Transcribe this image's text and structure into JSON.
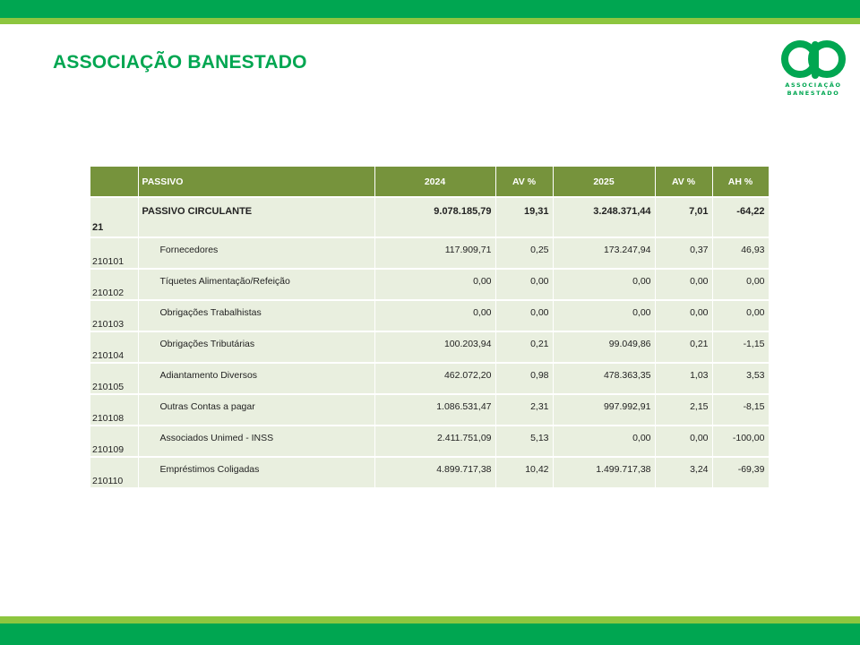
{
  "header": {
    "title": "ASSOCIAÇÃO BANESTADO"
  },
  "logo": {
    "line1": "ASSOCIAÇÃO",
    "line2": "BANESTADO",
    "color": "#00a651",
    "icon": "ab-logo-icon"
  },
  "colors": {
    "brand_green": "#00a651",
    "light_green": "#8dc63f",
    "table_header": "#76933c",
    "table_cell": "#e9efdf"
  },
  "table": {
    "headers": [
      "",
      "PASSIVO",
      "2024",
      "AV %",
      "2025",
      "AV %",
      "AH %"
    ],
    "group": {
      "code": "21",
      "name": "PASSIVO CIRCULANTE",
      "v2024": "9.078.185,79",
      "av2024": "19,31",
      "v2025": "3.248.371,44",
      "av2025": "7,01",
      "ah": "-64,22"
    },
    "rows": [
      {
        "code": "210101",
        "name": "Fornecedores",
        "v2024": "117.909,71",
        "av2024": "0,25",
        "v2025": "173.247,94",
        "av2025": "0,37",
        "ah": "46,93"
      },
      {
        "code": "210102",
        "name": "Tíquetes Alimentação/Refeição",
        "v2024": "0,00",
        "av2024": "0,00",
        "v2025": "0,00",
        "av2025": "0,00",
        "ah": "0,00"
      },
      {
        "code": "210103",
        "name": "Obrigações Trabalhistas",
        "v2024": "0,00",
        "av2024": "0,00",
        "v2025": "0,00",
        "av2025": "0,00",
        "ah": "0,00"
      },
      {
        "code": "210104",
        "name": "Obrigações Tributárias",
        "v2024": "100.203,94",
        "av2024": "0,21",
        "v2025": "99.049,86",
        "av2025": "0,21",
        "ah": "-1,15"
      },
      {
        "code": "210105",
        "name": "Adiantamento Diversos",
        "v2024": "462.072,20",
        "av2024": "0,98",
        "v2025": "478.363,35",
        "av2025": "1,03",
        "ah": "3,53"
      },
      {
        "code": "210108",
        "name": "Outras Contas a pagar",
        "v2024": "1.086.531,47",
        "av2024": "2,31",
        "v2025": "997.992,91",
        "av2025": "2,15",
        "ah": "-8,15"
      },
      {
        "code": "210109",
        "name": "Associados Unimed - INSS",
        "v2024": "2.411.751,09",
        "av2024": "5,13",
        "v2025": "0,00",
        "av2025": "0,00",
        "ah": "-100,00"
      },
      {
        "code": "210110",
        "name": "Empréstimos Coligadas",
        "v2024": "4.899.717,38",
        "av2024": "10,42",
        "v2025": "1.499.717,38",
        "av2025": "3,24",
        "ah": "-69,39"
      }
    ]
  }
}
